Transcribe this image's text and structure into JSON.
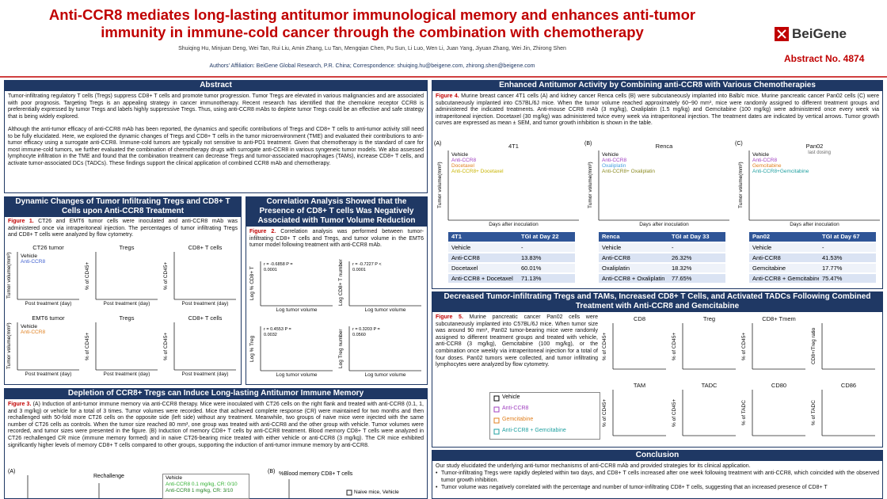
{
  "header": {
    "title": "Anti-CCR8 mediates long-lasting antitumor immunological memory and enhances anti-tumor immunity in immune-cold cancer through the combination with chemotherapy",
    "authors": "Shuiqing Hu, Minjuan Deng, Wei Tan, Rui Liu, Amin Zhang, Lu Tan, Mengqian Chen, Pu Sun, Li Luo, Wen Li, Juan Yang, Jiyuan Zhang, Wei Jin, Zhirong Shen",
    "affiliation": "Authors' Affiliation: BeiGene Global Research, P.R. China; Correspondence: shuiqing.hu@beigene.com, zhirong.shen@beigene.com",
    "logo": "BeiGene",
    "abstract_no": "Abstract No. 4874"
  },
  "abstract": {
    "heading": "Abstract",
    "paragraphs": [
      "Tumor-infiltrating regulatory T cells (Tregs) suppress CD8+ T cells and promote tumor progression. Tumor Tregs are elevated in various malignancies and are associated with poor prognosis. Targeting Tregs is an appealing strategy in cancer immunotherapy. Recent research has identified that the chemokine receptor CCR8 is preferentially expressed by tumor Tregs and labels highly suppressive Tregs. Thus, using anti-CCR8 mAbs to deplete tumor Tregs could be an effective and safe strategy that is being widely explored.",
      "Although the anti-tumor efficacy of anti-CCR8 mAb has been reported, the dynamics and specific contributions of Tregs and CD8+ T cells to anti-tumor activity still need to be fully elucidated. Here, we explored the dynamic changes of Tregs and CD8+ T cells in the tumor microenvironment (TME) and evaluated their contributions to anti-tumor efficacy using a surrogate anti-CCR8. Immune-cold tumors are typically not sensitive to anti-PD1 treatment. Given that chemotherapy is the standard of care for most immune-cold tumors, we further evaluated the combination of chemotherapy drugs with surrogate anti-CCR8 in various syngeneic tumor models. We also assessed lymphocyte infiltration in the TME and found that the combination treatment can decrease Tregs and tumor-associated macrophages (TAMs), increase CD8+ T cells, and activate tumor-associated DCs (TADCs). These findings support the clinical application of combined CCR8 mAb and chemotherapy."
    ]
  },
  "fig1": {
    "heading": "Dynamic Changes of Tumor Infiltrating Tregs and CD8+ T Cells upon Anti-CCR8 Treatment",
    "label": "Figure 1.",
    "caption": " CT26 and EMT6 tumor cells were inoculated and anti-CCR8 mAb was administered once via intraperitoneal injection. The percentages of tumor infiltrating Tregs and CD8+ T cells were analyzed by flow cytometry.",
    "panels": [
      {
        "title": "CT26 tumor",
        "ylabel": "Tumor volume(mm³)",
        "xlabel": "Post treatment (day)",
        "legend": [
          {
            "name": "Vehicle",
            "color": "#000000"
          },
          {
            "name": "Anti-CCR8",
            "color": "#4060d0"
          }
        ]
      },
      {
        "title": "Tregs",
        "ylabel": "% of CD45+",
        "xlabel": "Post treatment (day)"
      },
      {
        "title": "CD8+ T cells",
        "ylabel": "% of CD45+",
        "xlabel": "Post treatment (day)"
      },
      {
        "title": "EMT6 tumor",
        "ylabel": "Tumor volume(mm³)",
        "xlabel": "Post treatment (day)",
        "legend": [
          {
            "name": "Vehicle",
            "color": "#000000"
          },
          {
            "name": "Anti-CCR8",
            "color": "#e08020"
          }
        ]
      },
      {
        "title": "Tregs",
        "ylabel": "% of CD45+",
        "xlabel": "Post treatment (day)"
      },
      {
        "title": "CD8+ T cells",
        "ylabel": "% of CD45+",
        "xlabel": "Post treatment (day)"
      }
    ]
  },
  "fig2": {
    "heading": "Correlation Analysis Showed that the Presence of CD8+ T cells Was Negatively Associated with Tumor Volume Reduction",
    "label": "Figure 2.",
    "caption": " Correlation analysis was performed between tumor-infiltrating CD8+ T cells and Tregs, and tumor volume in the EMT6 tumor model following treatment with anti-CCR8 mAb.",
    "panels": [
      {
        "ylabel": "Log % CD8+ T",
        "xlabel": "Log tumor volume",
        "stats": "r = -0.6858 P = 0.0001"
      },
      {
        "ylabel": "Log CD8+ T number",
        "xlabel": "Log tumor volume",
        "stats": "r = -0.7227 P < 0.0001"
      },
      {
        "ylabel": "Log % Treg",
        "xlabel": "Log tumor volume",
        "stats": "r = 0.4553 P = 0.0032"
      },
      {
        "ylabel": "Log Treg number",
        "xlabel": "Log tumor volume",
        "stats": "r = 0.3203 P = 0.0560"
      }
    ]
  },
  "fig3": {
    "heading": "Depletion of CCR8+ Tregs can Induce Long-lasting Antitumor Immune Memory",
    "label": "Figure 3.",
    "caption": " (A) Induction of anti-tumor immune memory via anti-CCR8 therapy. Mice were inoculated with CT26 cells on the right flank and treated with anti-CCR8 (0.1, 1, and 3 mg/kg) or vehicle for a total of 3 times. Tumor volumes were recorded. Mice that achieved complete response (CR) were maintained for two months and then rechallenged with 50-fold more CT26 cells on the opposite side (left side) without any treatment. Meanwhile, two groups of naive mice were injected with the same number of CT26 cells as controls. When the tumor size reached 80 mm³, one group was treated with anti-CCR8 and the other group with vehicle. Tumor volumes were recorded, and tumor sizes were presented in the figure. (B) Induction of memory CD8+ T cells by anti-CCR8 treatment. Blood memory CD8+ T cells were analyzed in CT26 rechallenged CR mice (immune memory formed) and in naive CT26-bearing mice treated with either vehicle or anti-CCR8 (3 mg/kg). The CR mice exhibited significantly higher levels of memory CD8+ T cells compared to other groups, supporting the induction of anti-tumor immune memory by anti-CCR8.",
    "panel_a": "(A)",
    "rechallenge": "Rechallenge",
    "legend": [
      {
        "name": "Vehicle",
        "color": "#000000"
      },
      {
        "name": "Anti-CCR8 0.1 mg/kg, CR: 0/10",
        "color": "#30b030"
      },
      {
        "name": "Anti-CCR8 1 mg/kg, CR: 3/10",
        "color": "#208020"
      }
    ],
    "panel_b": "(B)",
    "panel_b_title": "%Blood memory CD8+ T cells",
    "panel_b_legend": "Naive mice, Vehicle"
  },
  "fig4": {
    "heading": "Enhanced Antitumor Activity by Combining anti-CCR8 with Various Chemotherapies",
    "label": "Figure 4.",
    "caption": " Murine breast cancer 4T1 cells (A) and kidney cancer Renca cells (B) were subcutaneously implanted into Balb/c mice. Murine pancreatic cancer Pan02 cells (C) were subcutaneously implanted into C57BL/6J mice. When the tumor volume reached approximately 60~90 mm³, mice were randomly assigned to different treatment groups and administered the indicated treatments. Anti-mouse CCR8 mAb (3 mg/kg), Oxaliplatin (1.5 mg/kg) and Gemcitabine (100 mg/kg) were administered once every week via intraperitoneal injection. Docetaxel (30 mg/kg) was administered twice every week via intraperitoneal injection. The treatment dates are indicated by vertical arrows. Tumor growth curves are expressed as mean ± SEM, and tumor growth inhibition is shown in the table.",
    "panels": [
      {
        "tag": "(A)",
        "title": "4T1",
        "ylabel": "Tumor volume(mm³)",
        "xlabel": "Days after inoculation",
        "legend": [
          {
            "name": "Vehicle",
            "color": "#000000"
          },
          {
            "name": "Anti-CCR8",
            "color": "#a040c0"
          },
          {
            "name": "Docetaxel",
            "color": "#e08020"
          },
          {
            "name": "Anti-CCR8+ Docetaxel",
            "color": "#c8b400"
          }
        ]
      },
      {
        "tag": "(B)",
        "title": "Renca",
        "ylabel": "Tumor volume(mm³)",
        "xlabel": "Days after inoculation",
        "legend": [
          {
            "name": "Vehicle",
            "color": "#000000"
          },
          {
            "name": "Anti-CCR8",
            "color": "#a040c0"
          },
          {
            "name": "Oxaliplatin",
            "color": "#4aa0e0"
          },
          {
            "name": "Anti-CCR8+ Oxaliplatin",
            "color": "#8a8a20"
          }
        ]
      },
      {
        "tag": "(C)",
        "title": "Pan02",
        "ylabel": "Tumor volume(mm³)",
        "xlabel": "Days after inoculation",
        "note": "last dosing",
        "legend": [
          {
            "name": "Vehicle",
            "color": "#000000"
          },
          {
            "name": "Anti-CCR8",
            "color": "#a040c0"
          },
          {
            "name": "Gemcitabine",
            "color": "#e08020"
          },
          {
            "name": "Anti-CCR8+Gemcitabine",
            "color": "#20a0a0"
          }
        ]
      }
    ],
    "tables": [
      {
        "header": [
          "4T1",
          "TGI at Day 22"
        ],
        "rows": [
          [
            "Vehicle",
            "-"
          ],
          [
            "Anti-CCR8",
            "13.83%"
          ],
          [
            "Docetaxel",
            "60.01%"
          ],
          [
            "Anti-CCR8 + Docetaxel",
            "71.13%"
          ]
        ]
      },
      {
        "header": [
          "Renca",
          "TGI at Day 33"
        ],
        "rows": [
          [
            "Vehicle",
            "-"
          ],
          [
            "Anti-CCR8",
            "26.32%"
          ],
          [
            "Oxaliplatin",
            "18.32%"
          ],
          [
            "Anti-CCR8 + Oxaliplatin",
            "77.65%"
          ]
        ]
      },
      {
        "header": [
          "Pan02",
          "TGI at Day 67"
        ],
        "rows": [
          [
            "Vehicle",
            "-"
          ],
          [
            "Anti-CCR8",
            "41.53%"
          ],
          [
            "Gemcitabine",
            "17.77%"
          ],
          [
            "Anti-CCR8 + Gemcitabine",
            "75.47%"
          ]
        ]
      }
    ]
  },
  "fig5": {
    "heading": "Decreased Tumor-infiltrating Tregs and TAMs, Increased CD8+ T Cells, and Activated TADCs Following Combined Treatment with Anti-CCR8 and Gemcitabine",
    "label": "Figure 5.",
    "caption": " Murine pancreatic cancer Pan02 cells were subcutaneously implanted into C57BL/6J mice. When tumor size was around 90 mm³, Pan02 tumor-bearing mice were randomly assigned to different treatment groups and treated with vehicle, anti-CCR8 (3 mg/kg), Gemcitabine (100 mg/kg), or the combination once weekly via intraperitoneal injection for a total of four doses. Pan02 tumors were collected, and tumor infiltrating lymphocytes were analyzed by flow cytometry.",
    "legend": [
      {
        "name": "Vehicle",
        "color": "#000000"
      },
      {
        "name": "Anti-CCR8",
        "color": "#a040c0"
      },
      {
        "name": "Gemcitabine",
        "color": "#e08020"
      },
      {
        "name": "Anti-CCR8 + Gemcitabine",
        "color": "#20a0a0"
      }
    ],
    "panels": [
      {
        "title": "CD8",
        "ylabel": "% of CD45+"
      },
      {
        "title": "Treg",
        "ylabel": "% of CD45+"
      },
      {
        "title": "CD8+ Tmem",
        "ylabel": "% of CD45+"
      },
      {
        "ylabel": "CD8+/Treg ratio"
      },
      {
        "title": "TAM",
        "ylabel": "% of CD45+"
      },
      {
        "title": "TADC",
        "ylabel": "% of CD45+"
      },
      {
        "title": "CD80",
        "ylabel": "% of TADC"
      },
      {
        "title": "CD86",
        "ylabel": "% of TADC"
      }
    ]
  },
  "conclusion": {
    "heading": "Conclusion",
    "intro": "Our study elucidated the underlying anti-tumor mechanisms of anti-CCR8 mAb and provided strategies for its clinical application.",
    "bullets": [
      "Tumor-infiltrating Tregs were rapidly depleted within two days, and CD8+ T cells increased after one week following treatment with anti-CCR8, which coincided with the observed tumor growth inhibition.",
      "Tumor volume was negatively correlated with the percentage and number of tumor-infiltrating CD8+ T cells, suggesting that an increased presence of CD8+ T"
    ]
  }
}
